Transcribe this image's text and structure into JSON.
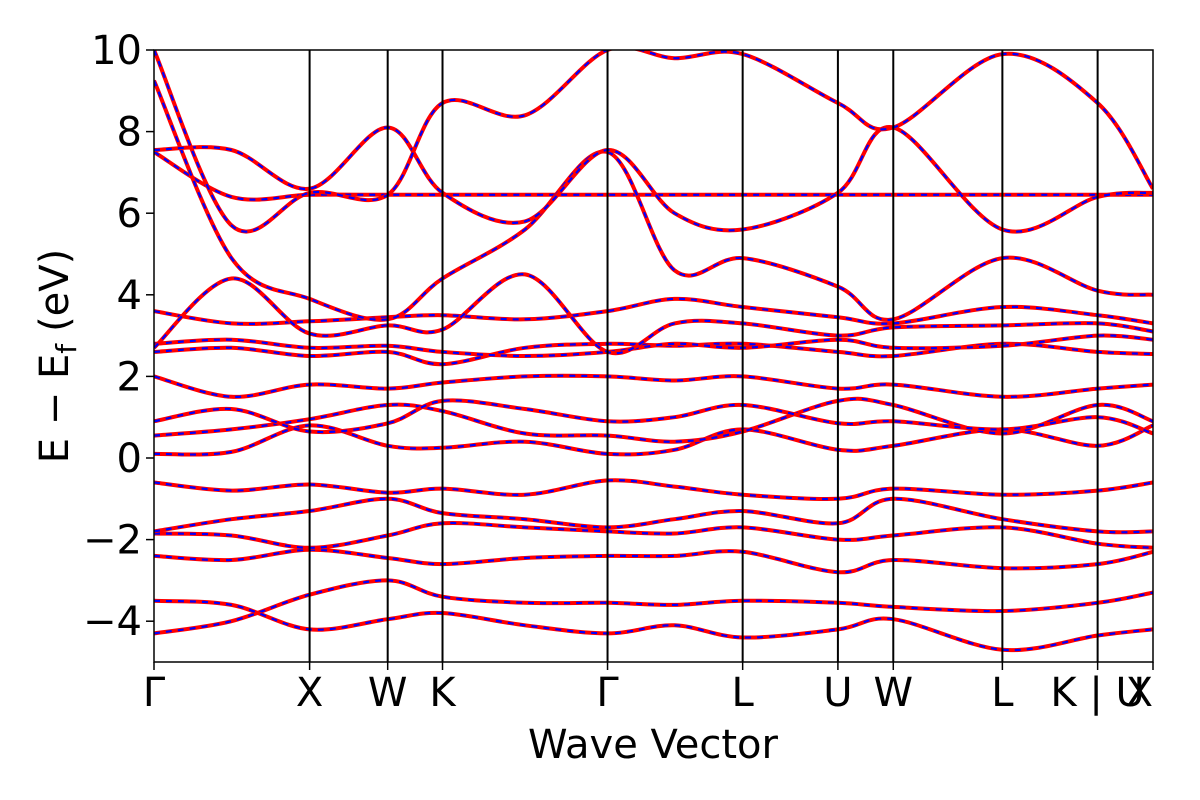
{
  "chart_data": {
    "type": "line",
    "title": "",
    "xlabel": "Wave Vector",
    "ylabel": "E − E",
    "ylabel_sub": "f",
    "ylabel_unit": "(eV)",
    "ylim": [
      -5,
      10
    ],
    "yticks": [
      {
        "value": -4,
        "label": "−4"
      },
      {
        "value": -2,
        "label": "−2"
      },
      {
        "value": 0,
        "label": "0"
      },
      {
        "value": 2,
        "label": "2"
      },
      {
        "value": 4,
        "label": "4"
      },
      {
        "value": 6,
        "label": "6"
      },
      {
        "value": 8,
        "label": "8"
      },
      {
        "value": 10,
        "label": "10"
      }
    ],
    "xlim": [
      0,
      15.73
    ],
    "kpoints": [
      {
        "label": "Γ",
        "k": 0
      },
      {
        "label": "X",
        "k": 2.81
      },
      {
        "label": "W",
        "k": 4.22
      },
      {
        "label": "K",
        "k": 5.21
      },
      {
        "label": "Γ",
        "k": 8.19
      },
      {
        "label": "L",
        "k": 10.63
      },
      {
        "label": "U",
        "k": 12.35
      },
      {
        "label": "W",
        "k": 13.35
      },
      {
        "label": "L",
        "k": 15.32
      },
      {
        "label": "K | U",
        "k": 17.04
      },
      {
        "label": "X",
        "k": 18.04
      }
    ],
    "line_styles": [
      {
        "name": "",
        "color": "#ff0000",
        "dash": "solid"
      },
      {
        "name": "",
        "color": "#0000ff",
        "dash": "dashed"
      }
    ],
    "bands": [
      [
        [
          0,
          -4.3
        ],
        [
          1.4,
          -4.0
        ],
        [
          2.81,
          -3.35
        ],
        [
          4.22,
          -3.0
        ],
        [
          5.21,
          -3.4
        ],
        [
          6.7,
          -3.55
        ],
        [
          8.19,
          -3.55
        ],
        [
          9.4,
          -3.6
        ],
        [
          10.63,
          -3.5
        ],
        [
          12.35,
          -3.55
        ],
        [
          13.35,
          -3.65
        ],
        [
          15.32,
          -3.75
        ],
        [
          17.04,
          -3.55
        ],
        [
          18.04,
          -3.3
        ]
      ],
      [
        [
          0,
          -3.5
        ],
        [
          1.4,
          -3.6
        ],
        [
          2.81,
          -4.2
        ],
        [
          4.22,
          -3.95
        ],
        [
          5.21,
          -3.8
        ],
        [
          6.7,
          -4.1
        ],
        [
          8.19,
          -4.3
        ],
        [
          9.4,
          -4.1
        ],
        [
          10.63,
          -4.4
        ],
        [
          12.35,
          -4.2
        ],
        [
          13.35,
          -3.95
        ],
        [
          15.32,
          -4.7
        ],
        [
          17.04,
          -4.35
        ],
        [
          18.04,
          -4.2
        ]
      ],
      [
        [
          0,
          -2.4
        ],
        [
          1.4,
          -2.5
        ],
        [
          2.81,
          -2.25
        ],
        [
          4.22,
          -2.45
        ],
        [
          5.21,
          -2.6
        ],
        [
          6.7,
          -2.45
        ],
        [
          8.19,
          -2.4
        ],
        [
          9.4,
          -2.4
        ],
        [
          10.63,
          -2.3
        ],
        [
          12.35,
          -2.8
        ],
        [
          13.35,
          -2.5
        ],
        [
          15.32,
          -2.7
        ],
        [
          17.04,
          -2.6
        ],
        [
          18.04,
          -2.3
        ]
      ],
      [
        [
          0,
          -1.85
        ],
        [
          1.4,
          -1.9
        ],
        [
          2.81,
          -2.2
        ],
        [
          4.22,
          -1.9
        ],
        [
          5.21,
          -1.6
        ],
        [
          6.7,
          -1.7
        ],
        [
          8.19,
          -1.8
        ],
        [
          9.4,
          -1.85
        ],
        [
          10.63,
          -1.7
        ],
        [
          12.35,
          -2.0
        ],
        [
          13.35,
          -1.9
        ],
        [
          15.32,
          -1.7
        ],
        [
          17.04,
          -2.1
        ],
        [
          18.04,
          -2.2
        ]
      ],
      [
        [
          0,
          -1.8
        ],
        [
          1.4,
          -1.5
        ],
        [
          2.81,
          -1.3
        ],
        [
          4.22,
          -1.0
        ],
        [
          5.21,
          -1.35
        ],
        [
          6.7,
          -1.5
        ],
        [
          8.19,
          -1.7
        ],
        [
          9.4,
          -1.5
        ],
        [
          10.63,
          -1.3
        ],
        [
          12.35,
          -1.6
        ],
        [
          13.35,
          -1.0
        ],
        [
          15.32,
          -1.5
        ],
        [
          17.04,
          -1.8
        ],
        [
          18.04,
          -1.8
        ]
      ],
      [
        [
          0,
          -0.6
        ],
        [
          1.4,
          -0.8
        ],
        [
          2.81,
          -0.65
        ],
        [
          4.22,
          -0.85
        ],
        [
          5.21,
          -0.75
        ],
        [
          6.7,
          -0.9
        ],
        [
          8.19,
          -0.55
        ],
        [
          9.4,
          -0.7
        ],
        [
          10.63,
          -0.9
        ],
        [
          12.35,
          -1.0
        ],
        [
          13.35,
          -0.75
        ],
        [
          15.32,
          -0.9
        ],
        [
          17.04,
          -0.8
        ],
        [
          18.04,
          -0.6
        ]
      ],
      [
        [
          0,
          0.1
        ],
        [
          1.4,
          0.15
        ],
        [
          2.81,
          0.8
        ],
        [
          4.22,
          0.3
        ],
        [
          5.21,
          0.25
        ],
        [
          6.7,
          0.4
        ],
        [
          8.19,
          0.1
        ],
        [
          9.4,
          0.2
        ],
        [
          10.63,
          0.7
        ],
        [
          12.35,
          0.2
        ],
        [
          13.35,
          0.3
        ],
        [
          15.32,
          0.7
        ],
        [
          17.04,
          0.3
        ],
        [
          18.04,
          0.8
        ]
      ],
      [
        [
          0,
          0.55
        ],
        [
          1.4,
          0.7
        ],
        [
          2.81,
          0.95
        ],
        [
          4.22,
          1.3
        ],
        [
          5.21,
          1.15
        ],
        [
          6.7,
          0.6
        ],
        [
          8.19,
          0.55
        ],
        [
          9.4,
          0.4
        ],
        [
          10.63,
          0.65
        ],
        [
          12.35,
          1.4
        ],
        [
          13.35,
          1.3
        ],
        [
          15.32,
          0.6
        ],
        [
          17.04,
          1.3
        ],
        [
          18.04,
          0.9
        ]
      ],
      [
        [
          0,
          0.9
        ],
        [
          1.4,
          1.2
        ],
        [
          2.81,
          0.65
        ],
        [
          4.22,
          0.85
        ],
        [
          5.21,
          1.4
        ],
        [
          6.7,
          1.2
        ],
        [
          8.19,
          0.9
        ],
        [
          9.4,
          1.0
        ],
        [
          10.63,
          1.3
        ],
        [
          12.35,
          0.85
        ],
        [
          13.35,
          0.9
        ],
        [
          15.32,
          0.7
        ],
        [
          17.04,
          1.0
        ],
        [
          18.04,
          0.6
        ]
      ],
      [
        [
          0,
          2.0
        ],
        [
          1.4,
          1.5
        ],
        [
          2.81,
          1.8
        ],
        [
          4.22,
          1.7
        ],
        [
          5.21,
          1.85
        ],
        [
          6.7,
          2.0
        ],
        [
          8.19,
          2.0
        ],
        [
          9.4,
          1.9
        ],
        [
          10.63,
          2.0
        ],
        [
          12.35,
          1.7
        ],
        [
          13.35,
          1.8
        ],
        [
          15.32,
          1.5
        ],
        [
          17.04,
          1.7
        ],
        [
          18.04,
          1.8
        ]
      ],
      [
        [
          0,
          2.6
        ],
        [
          1.4,
          2.7
        ],
        [
          2.81,
          2.5
        ],
        [
          4.22,
          2.6
        ],
        [
          5.21,
          2.3
        ],
        [
          6.7,
          2.7
        ],
        [
          8.19,
          2.8
        ],
        [
          9.4,
          2.75
        ],
        [
          10.63,
          2.8
        ],
        [
          12.35,
          2.6
        ],
        [
          13.35,
          2.5
        ],
        [
          15.32,
          2.8
        ],
        [
          17.04,
          2.6
        ],
        [
          18.04,
          2.55
        ]
      ],
      [
        [
          0,
          2.8
        ],
        [
          1.4,
          2.9
        ],
        [
          2.81,
          2.7
        ],
        [
          4.22,
          2.75
        ],
        [
          5.21,
          2.6
        ],
        [
          6.7,
          2.5
        ],
        [
          8.19,
          2.6
        ],
        [
          9.4,
          2.8
        ],
        [
          10.63,
          2.7
        ],
        [
          12.35,
          2.9
        ],
        [
          13.35,
          2.7
        ],
        [
          15.32,
          2.75
        ],
        [
          17.04,
          3.0
        ],
        [
          18.04,
          2.9
        ]
      ],
      [
        [
          0,
          3.6
        ],
        [
          1.4,
          3.3
        ],
        [
          2.81,
          3.35
        ],
        [
          4.22,
          3.45
        ],
        [
          5.21,
          3.5
        ],
        [
          6.7,
          3.4
        ],
        [
          8.19,
          3.6
        ],
        [
          9.4,
          3.9
        ],
        [
          10.63,
          3.7
        ],
        [
          12.35,
          3.45
        ],
        [
          13.35,
          3.3
        ],
        [
          15.32,
          3.7
        ],
        [
          17.04,
          3.5
        ],
        [
          18.04,
          3.3
        ]
      ],
      [
        [
          0,
          2.7
        ],
        [
          1.4,
          4.4
        ],
        [
          2.81,
          3.05
        ],
        [
          4.22,
          3.25
        ],
        [
          5.21,
          3.15
        ],
        [
          6.7,
          4.5
        ],
        [
          8.19,
          2.6
        ],
        [
          9.4,
          3.3
        ],
        [
          10.63,
          3.3
        ],
        [
          12.35,
          3.0
        ],
        [
          13.35,
          3.2
        ],
        [
          15.32,
          3.25
        ],
        [
          17.04,
          3.3
        ],
        [
          18.04,
          3.1
        ]
      ],
      [
        [
          0,
          7.5
        ],
        [
          1.4,
          6.4
        ],
        [
          2.81,
          6.45
        ],
        [
          4.22,
          6.45
        ],
        [
          5.21,
          6.45
        ],
        [
          6.7,
          6.45
        ],
        [
          8.19,
          6.45
        ],
        [
          9.4,
          6.45
        ],
        [
          10.63,
          6.45
        ],
        [
          12.35,
          6.45
        ],
        [
          13.35,
          6.45
        ],
        [
          15.32,
          6.45
        ],
        [
          17.04,
          6.45
        ],
        [
          18.04,
          6.45
        ]
      ],
      [
        [
          0,
          9.25
        ],
        [
          1.4,
          4.9
        ],
        [
          2.81,
          3.9
        ],
        [
          4.22,
          3.4
        ],
        [
          5.21,
          4.4
        ],
        [
          6.7,
          5.6
        ],
        [
          8.19,
          7.5
        ],
        [
          9.4,
          4.6
        ],
        [
          10.63,
          4.9
        ],
        [
          12.35,
          4.2
        ],
        [
          13.35,
          3.4
        ],
        [
          15.32,
          4.9
        ],
        [
          17.04,
          4.1
        ],
        [
          18.04,
          4.0
        ]
      ],
      [
        [
          0,
          7.55
        ],
        [
          1.4,
          7.55
        ],
        [
          2.81,
          6.6
        ],
        [
          4.22,
          8.1
        ],
        [
          5.21,
          6.5
        ],
        [
          6.7,
          5.8
        ],
        [
          8.19,
          7.55
        ],
        [
          9.4,
          6.0
        ],
        [
          10.63,
          5.6
        ],
        [
          12.35,
          6.5
        ],
        [
          13.35,
          8.1
        ],
        [
          15.32,
          5.6
        ],
        [
          17.04,
          6.4
        ],
        [
          18.04,
          6.5
        ]
      ],
      [
        [
          0,
          10.0
        ],
        [
          1.4,
          5.7
        ],
        [
          2.81,
          6.5
        ],
        [
          4.22,
          6.45
        ],
        [
          5.21,
          8.7
        ],
        [
          6.7,
          8.4
        ],
        [
          8.19,
          10.0
        ],
        [
          9.4,
          9.8
        ],
        [
          10.63,
          9.9
        ],
        [
          12.35,
          8.7
        ],
        [
          13.35,
          8.1
        ],
        [
          15.32,
          9.9
        ],
        [
          17.04,
          8.7
        ],
        [
          18.04,
          6.6
        ]
      ]
    ]
  }
}
